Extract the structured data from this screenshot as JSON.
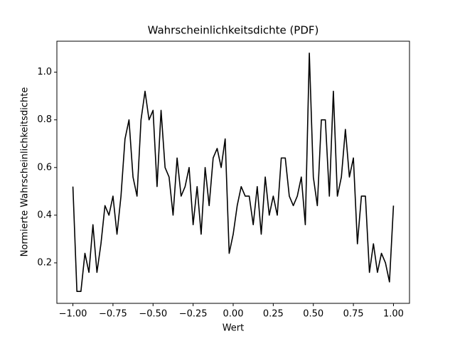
{
  "chart_data": {
    "type": "line",
    "title": "Wahrscheinlichkeitsdichte (PDF)",
    "xlabel": "Wert",
    "ylabel": "Normierte Wahrscheinlichkeitsdichte",
    "x": [
      -1.0,
      -0.975,
      -0.95,
      -0.925,
      -0.9,
      -0.875,
      -0.85,
      -0.825,
      -0.8,
      -0.775,
      -0.75,
      -0.725,
      -0.7,
      -0.675,
      -0.65,
      -0.625,
      -0.6,
      -0.575,
      -0.55,
      -0.525,
      -0.5,
      -0.475,
      -0.45,
      -0.425,
      -0.4,
      -0.375,
      -0.35,
      -0.325,
      -0.3,
      -0.275,
      -0.25,
      -0.225,
      -0.2,
      -0.175,
      -0.15,
      -0.125,
      -0.1,
      -0.075,
      -0.05,
      -0.025,
      0.0,
      0.025,
      0.05,
      0.075,
      0.1,
      0.125,
      0.15,
      0.175,
      0.2,
      0.225,
      0.25,
      0.275,
      0.3,
      0.325,
      0.35,
      0.375,
      0.4,
      0.425,
      0.45,
      0.475,
      0.5,
      0.525,
      0.55,
      0.575,
      0.6,
      0.625,
      0.65,
      0.675,
      0.7,
      0.725,
      0.75,
      0.775,
      0.8,
      0.825,
      0.85,
      0.875,
      0.9,
      0.925,
      0.95,
      0.975,
      1.0
    ],
    "series": [
      {
        "color": "#000000",
        "values": [
          0.52,
          0.08,
          0.08,
          0.24,
          0.16,
          0.36,
          0.16,
          0.28,
          0.44,
          0.4,
          0.48,
          0.32,
          0.48,
          0.72,
          0.8,
          0.56,
          0.48,
          0.8,
          0.92,
          0.8,
          0.84,
          0.52,
          0.84,
          0.6,
          0.56,
          0.4,
          0.64,
          0.48,
          0.52,
          0.6,
          0.36,
          0.52,
          0.32,
          0.6,
          0.44,
          0.64,
          0.68,
          0.6,
          0.72,
          0.24,
          0.32,
          0.44,
          0.52,
          0.48,
          0.48,
          0.36,
          0.52,
          0.32,
          0.56,
          0.4,
          0.48,
          0.4,
          0.64,
          0.64,
          0.48,
          0.44,
          0.48,
          0.56,
          0.36,
          1.08,
          0.56,
          0.44,
          0.8,
          0.8,
          0.48,
          0.92,
          0.48,
          0.56,
          0.76,
          0.56,
          0.64,
          0.28,
          0.48,
          0.48,
          0.16,
          0.28,
          0.16,
          0.24,
          0.2,
          0.12,
          0.44
        ]
      }
    ],
    "xlim": [
      -1.1,
      1.1
    ],
    "ylim": [
      0.03,
      1.13
    ],
    "xticks": [
      {
        "value": -1.0,
        "label": "−1.00"
      },
      {
        "value": -0.75,
        "label": "−0.75"
      },
      {
        "value": -0.5,
        "label": "−0.50"
      },
      {
        "value": -0.25,
        "label": "−0.25"
      },
      {
        "value": 0.0,
        "label": "0.00"
      },
      {
        "value": 0.25,
        "label": "0.25"
      },
      {
        "value": 0.5,
        "label": "0.50"
      },
      {
        "value": 0.75,
        "label": "0.75"
      },
      {
        "value": 1.0,
        "label": "1.00"
      }
    ],
    "yticks": [
      0.2,
      0.4,
      0.6,
      0.8,
      {
        "value": 1.0,
        "label": "1.0"
      }
    ],
    "grid": false
  }
}
